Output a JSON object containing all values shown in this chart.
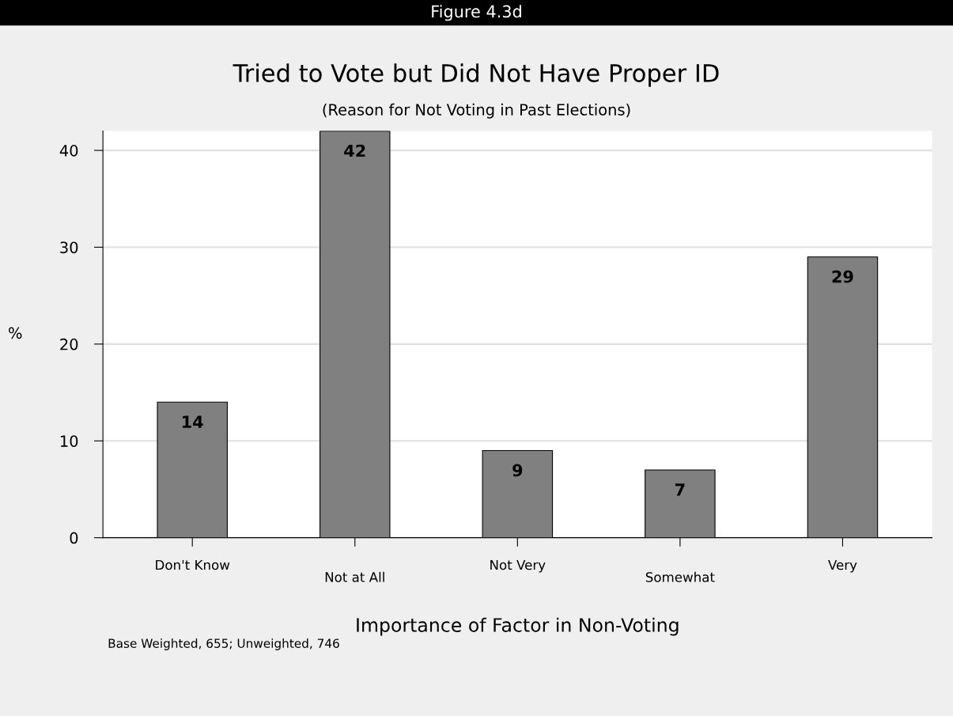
{
  "chart_data": {
    "type": "bar",
    "title": "Tried to Vote but Did Not Have Proper ID",
    "subtitle": "(Reason for Not Voting in Past Elections)",
    "xlabel": "Importance of Factor in Non-Voting",
    "ylabel": "%",
    "annotations": [
      "Figure 4.3d",
      "Base Weighted, 655; Unweighted, 746"
    ],
    "categories": [
      "Don't Know",
      "Not at All",
      "Not Very",
      "Somewhat",
      "Very"
    ],
    "values": [
      14,
      42,
      9,
      7,
      29
    ],
    "color": "#808080",
    "ylim": [
      0,
      42
    ],
    "yticks": [
      0,
      10,
      20,
      30,
      40
    ],
    "grid": "y",
    "data_labels": true
  }
}
